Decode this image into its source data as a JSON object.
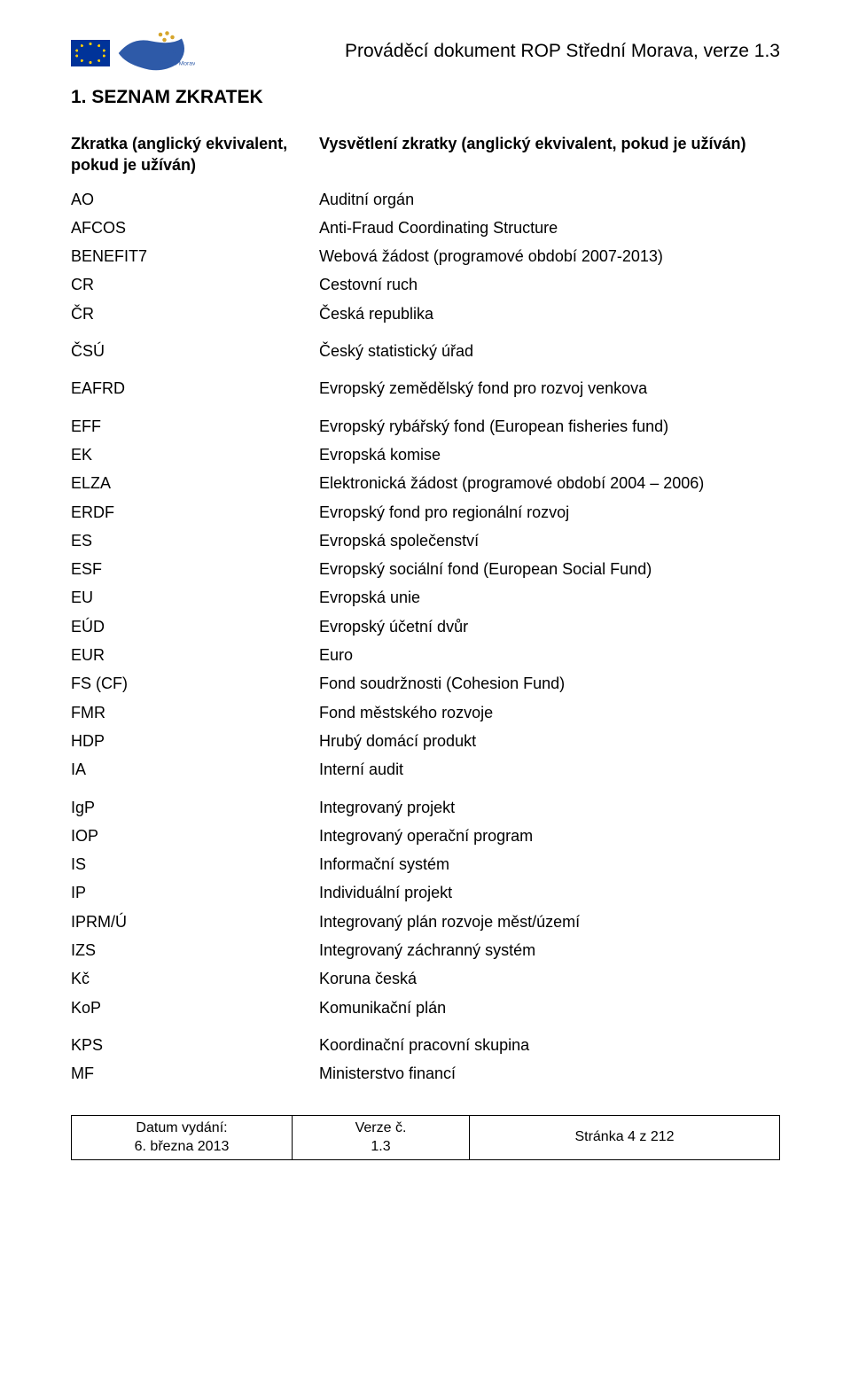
{
  "colors": {
    "eu_blue": "#003399",
    "eu_gold": "#ffcc00",
    "rop_blue": "#2e5aa8",
    "rop_gold": "#d6a52b",
    "text": "#000000",
    "bg": "#ffffff"
  },
  "header": {
    "doc_title": "Prováděcí dokument ROP Střední Morava, verze 1.3"
  },
  "logo": {
    "rop_top": "ROP",
    "rop_bottom": "Střední Morava"
  },
  "section": {
    "title": "1. SEZNAM ZKRATEK"
  },
  "table": {
    "head_left": "Zkratka (anglický ekvivalent, pokud je užíván)",
    "head_right": "Vysvětlení zkratky (anglický ekvivalent, pokud je užíván)",
    "rows": [
      {
        "k": "AO",
        "v": "Auditní orgán"
      },
      {
        "k": "AFCOS",
        "v": "Anti-Fraud Coordinating Structure"
      },
      {
        "k": "BENEFIT7",
        "v": "Webová žádost (programové období 2007-2013)"
      },
      {
        "k": "CR",
        "v": "Cestovní ruch"
      },
      {
        "k": "ČR",
        "v": "Česká republika"
      },
      {
        "k": "ČSÚ",
        "v": "Český statistický úřad",
        "gap": true
      },
      {
        "k": "EAFRD",
        "v": "Evropský zemědělský fond pro rozvoj venkova",
        "gap": true
      },
      {
        "k": "EFF",
        "v": "Evropský rybářský fond (European fisheries fund)",
        "gap": true
      },
      {
        "k": "EK",
        "v": "Evropská komise"
      },
      {
        "k": "ELZA",
        "v": "Elektronická žádost (programové období 2004 – 2006)"
      },
      {
        "k": "ERDF",
        "v": "Evropský fond pro regionální rozvoj"
      },
      {
        "k": "ES",
        "v": "Evropská společenství"
      },
      {
        "k": "ESF",
        "v": "Evropský sociální fond (European Social Fund)"
      },
      {
        "k": "EU",
        "v": "Evropská unie"
      },
      {
        "k": "EÚD",
        "v": "Evropský účetní dvůr"
      },
      {
        "k": "EUR",
        "v": "Euro"
      },
      {
        "k": "FS (CF)",
        "v": "Fond soudržnosti (Cohesion Fund)"
      },
      {
        "k": "FMR",
        "v": "Fond městského rozvoje"
      },
      {
        "k": "HDP",
        "v": "Hrubý domácí produkt"
      },
      {
        "k": "IA",
        "v": "Interní audit"
      },
      {
        "k": "IgP",
        "v": "Integrovaný projekt",
        "gap": true
      },
      {
        "k": "IOP",
        "v": "Integrovaný operační program"
      },
      {
        "k": "IS",
        "v": "Informační systém"
      },
      {
        "k": "IP",
        "v": "Individuální projekt"
      },
      {
        "k": "IPRM/Ú",
        "v": "Integrovaný plán rozvoje měst/území"
      },
      {
        "k": "IZS",
        "v": "Integrovaný záchranný systém"
      },
      {
        "k": "Kč",
        "v": "Koruna česká"
      },
      {
        "k": "KoP",
        "v": "Komunikační plán"
      },
      {
        "k": "KPS",
        "v": "Koordinační pracovní skupina",
        "gap": true
      },
      {
        "k": "MF",
        "v": "Ministerstvo financí"
      }
    ]
  },
  "footer": {
    "left_label": "Datum vydání:",
    "left_value": "6. března 2013",
    "mid_label": "Verze č.",
    "mid_value": "1.3",
    "right": "Stránka 4 z 212"
  }
}
